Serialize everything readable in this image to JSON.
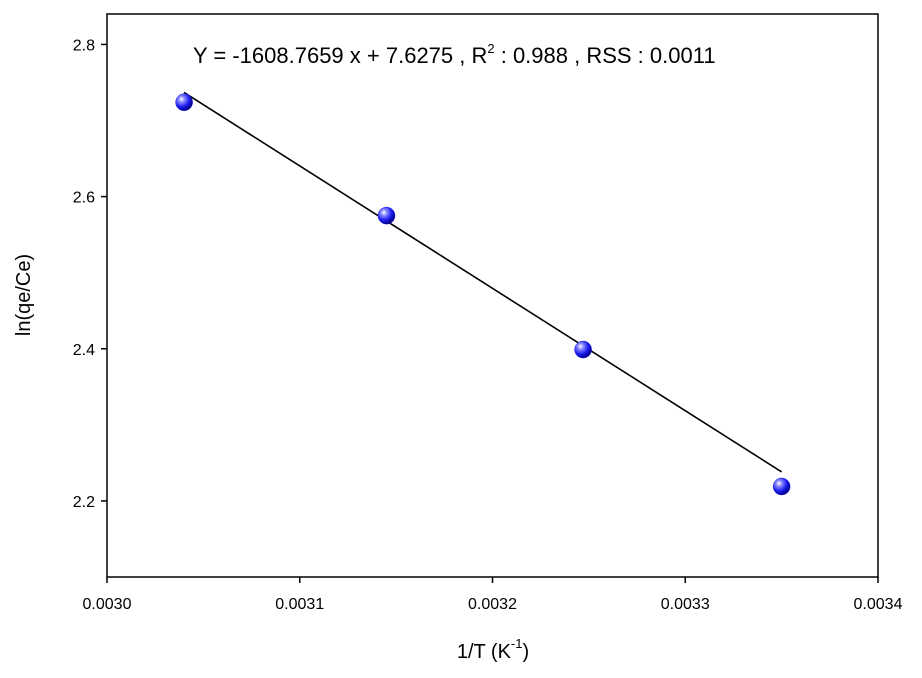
{
  "chart_data": {
    "type": "scatter",
    "title": "",
    "xlabel": "1/T (K",
    "xlabel_sup": "-1",
    "xlabel_tail": ")",
    "ylabel": "ln(qe/Ce)",
    "xlim": [
      0.003,
      0.0034
    ],
    "ylim": [
      2.1,
      2.84
    ],
    "x_ticks": [
      0.003,
      0.0031,
      0.0032,
      0.0033,
      0.0034
    ],
    "x_tick_labels": [
      "0.0030",
      "0.0031",
      "0.0032",
      "0.0033",
      "0.0034"
    ],
    "y_ticks": [
      2.2,
      2.4,
      2.6,
      2.8
    ],
    "y_tick_labels": [
      "2.2",
      "2.4",
      "2.6",
      "2.8"
    ],
    "grid": false,
    "series": [
      {
        "x": [
          0.00304,
          0.003145,
          0.003247,
          0.00335
        ],
        "y": [
          2.724,
          2.575,
          2.399,
          2.219
        ],
        "marker_color": "#1a1aee"
      }
    ],
    "fit": {
      "slope": -1608.7659,
      "intercept": 7.6275,
      "x_range": [
        0.00304,
        0.00335
      ],
      "color": "#000000"
    },
    "annotation": {
      "part1": "Y = -1608.7659 x + 7.6275 , R",
      "sup": "2",
      "part2": " : 0.988 , RSS : 0.0011"
    }
  }
}
